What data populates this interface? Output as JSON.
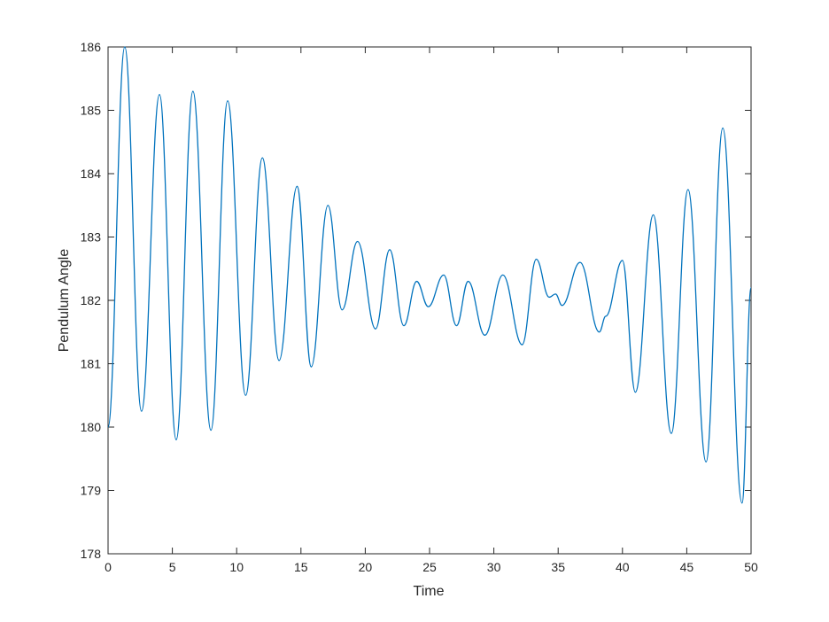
{
  "chart_data": {
    "type": "line",
    "xlabel": "Time",
    "ylabel": "Pendulum Angle",
    "x": [
      0,
      1.3,
      2.6,
      4.0,
      5.3,
      6.6,
      8.0,
      9.3,
      10.7,
      12.0,
      13.3,
      14.7,
      15.8,
      17.1,
      18.2,
      19.4,
      20.8,
      21.9,
      23.0,
      24.0,
      24.9,
      26.1,
      27.1,
      28.0,
      29.3,
      30.7,
      32.2,
      33.3,
      34.3,
      34.8,
      35.3,
      36.7,
      38.2,
      38.7,
      40.0,
      41.0,
      42.4,
      43.8,
      45.1,
      46.5,
      47.8,
      49.3,
      50
    ],
    "series": [
      {
        "color": "#0072bd",
        "values": [
          180.0,
          186.0,
          180.25,
          185.25,
          179.8,
          185.3,
          179.95,
          185.15,
          180.5,
          184.25,
          181.05,
          183.8,
          180.95,
          183.5,
          181.85,
          182.93,
          181.55,
          182.8,
          181.6,
          182.3,
          181.9,
          182.4,
          181.6,
          182.3,
          181.45,
          182.4,
          181.3,
          182.65,
          182.05,
          182.1,
          181.92,
          182.6,
          181.5,
          181.75,
          182.63,
          180.55,
          183.35,
          179.9,
          183.75,
          179.45,
          184.72,
          178.8,
          182.2
        ]
      }
    ],
    "xlim": [
      0,
      50
    ],
    "xticks": [
      0,
      5,
      10,
      15,
      20,
      25,
      30,
      35,
      40,
      45,
      50
    ],
    "ylim": [
      178,
      186
    ],
    "yticks": [
      178,
      179,
      180,
      181,
      182,
      183,
      184,
      185,
      186
    ]
  }
}
